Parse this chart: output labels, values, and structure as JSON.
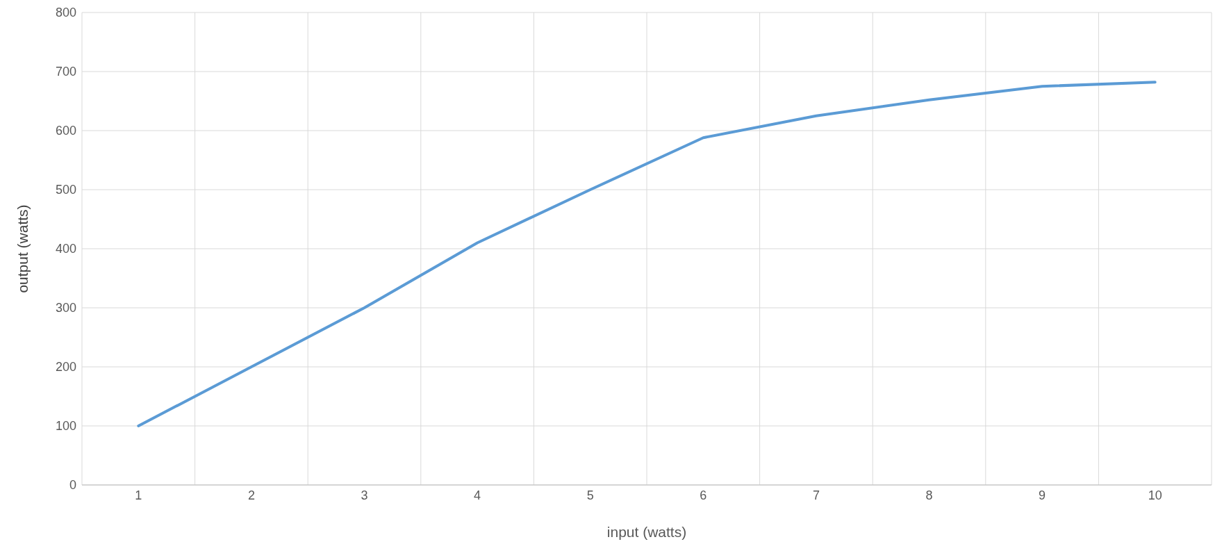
{
  "chart_data": {
    "type": "line",
    "xlabel": "input (watts)",
    "ylabel": "output (watts)",
    "categories": [
      "1",
      "2",
      "3",
      "4",
      "5",
      "6",
      "7",
      "8",
      "9",
      "10"
    ],
    "series": [
      {
        "color": "#5b9bd5",
        "values": [
          100,
          200,
          300,
          410,
          500,
          588,
          625,
          652,
          675,
          682
        ]
      }
    ],
    "ylim": [
      0,
      800
    ],
    "yticks": [
      0,
      100,
      200,
      300,
      400,
      500,
      600,
      700,
      800
    ],
    "grid": true,
    "marker": "none",
    "line_style": "solid"
  }
}
